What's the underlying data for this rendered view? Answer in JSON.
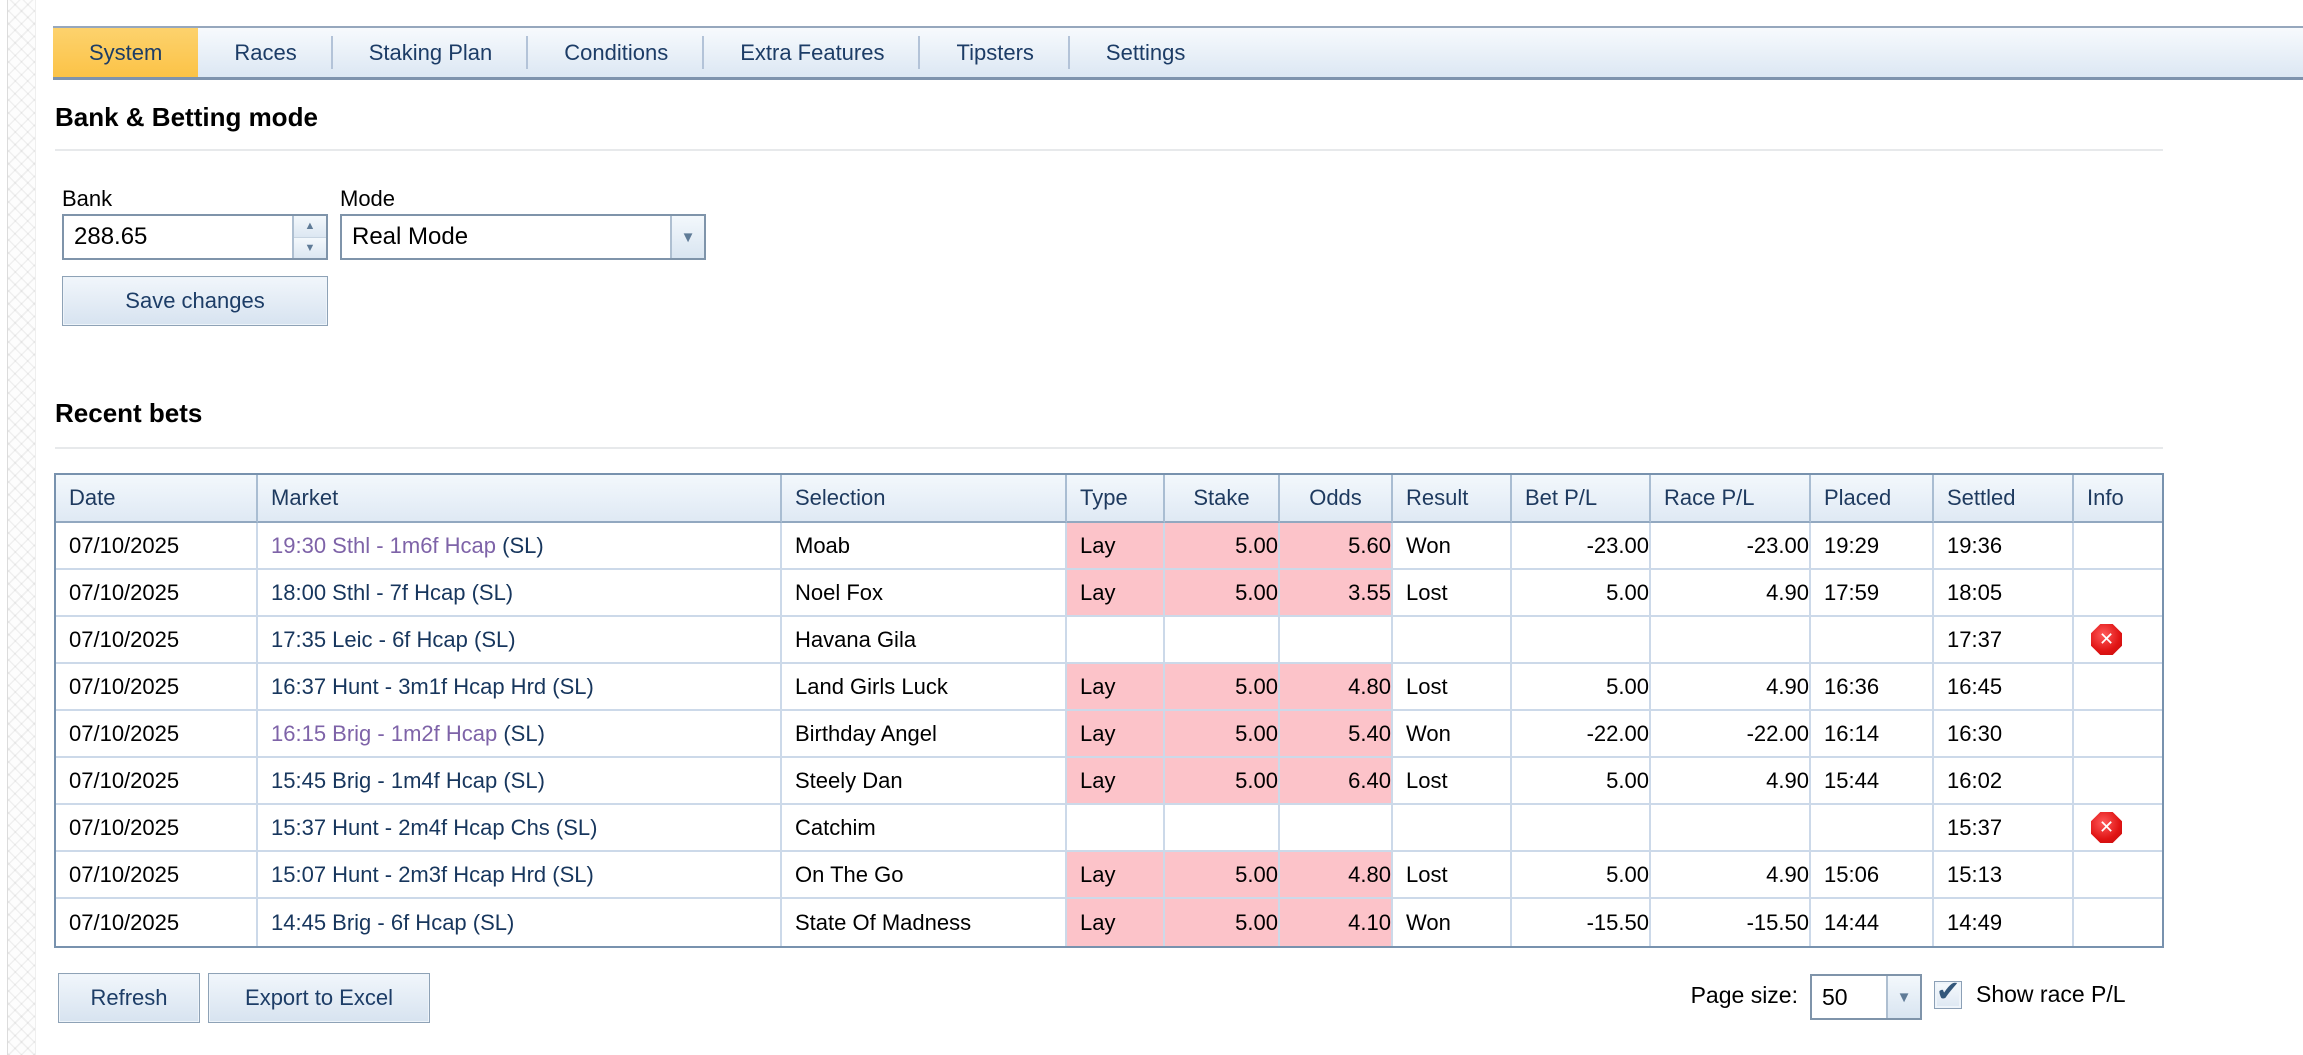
{
  "tabs": {
    "items": [
      {
        "label": "System",
        "active": true
      },
      {
        "label": "Races",
        "active": false
      },
      {
        "label": "Staking Plan",
        "active": false
      },
      {
        "label": "Conditions",
        "active": false
      },
      {
        "label": "Extra Features",
        "active": false
      },
      {
        "label": "Tipsters",
        "active": false
      },
      {
        "label": "Settings",
        "active": false
      }
    ]
  },
  "bank_section": {
    "title": "Bank & Betting mode",
    "bank_label": "Bank",
    "bank_value": "288.65",
    "mode_label": "Mode",
    "mode_value": "Real Mode",
    "save_label": "Save changes"
  },
  "recent_section": {
    "title": "Recent bets",
    "columns": [
      "Date",
      "Market",
      "Selection",
      "Type",
      "Stake",
      "Odds",
      "Result",
      "Bet P/L",
      "Race P/L",
      "Placed",
      "Settled",
      "Info"
    ],
    "rows": [
      {
        "date": "07/10/2025",
        "market": {
          "link": "19:30 Sthl - 1m6f Hcap",
          "suffix": "(SL)",
          "visited": true
        },
        "selection": "Moab",
        "type": "Lay",
        "stake": "5.00",
        "odds": "5.60",
        "result": "Won",
        "bet_pl": "-23.00",
        "race_pl": "-23.00",
        "placed": "19:29",
        "settled": "19:36",
        "error": false
      },
      {
        "date": "07/10/2025",
        "market": {
          "link": "18:00 Sthl - 7f Hcap",
          "suffix": "(SL)",
          "visited": false
        },
        "selection": "Noel Fox",
        "type": "Lay",
        "stake": "5.00",
        "odds": "3.55",
        "result": "Lost",
        "bet_pl": "5.00",
        "race_pl": "4.90",
        "placed": "17:59",
        "settled": "18:05",
        "error": false
      },
      {
        "date": "07/10/2025",
        "market": {
          "link": "17:35 Leic - 6f Hcap",
          "suffix": "(SL)",
          "visited": false
        },
        "selection": "Havana Gila",
        "type": "",
        "stake": "",
        "odds": "",
        "result": "",
        "bet_pl": "",
        "race_pl": "",
        "placed": "",
        "settled": "17:37",
        "error": true
      },
      {
        "date": "07/10/2025",
        "market": {
          "link": "16:37 Hunt - 3m1f Hcap Hrd",
          "suffix": "(SL)",
          "visited": false
        },
        "selection": "Land Girls Luck",
        "type": "Lay",
        "stake": "5.00",
        "odds": "4.80",
        "result": "Lost",
        "bet_pl": "5.00",
        "race_pl": "4.90",
        "placed": "16:36",
        "settled": "16:45",
        "error": false
      },
      {
        "date": "07/10/2025",
        "market": {
          "link": "16:15 Brig - 1m2f Hcap",
          "suffix": "(SL)",
          "visited": true
        },
        "selection": "Birthday Angel",
        "type": "Lay",
        "stake": "5.00",
        "odds": "5.40",
        "result": "Won",
        "bet_pl": "-22.00",
        "race_pl": "-22.00",
        "placed": "16:14",
        "settled": "16:30",
        "error": false
      },
      {
        "date": "07/10/2025",
        "market": {
          "link": "15:45 Brig - 1m4f Hcap",
          "suffix": "(SL)",
          "visited": false
        },
        "selection": "Steely Dan",
        "type": "Lay",
        "stake": "5.00",
        "odds": "6.40",
        "result": "Lost",
        "bet_pl": "5.00",
        "race_pl": "4.90",
        "placed": "15:44",
        "settled": "16:02",
        "error": false
      },
      {
        "date": "07/10/2025",
        "market": {
          "link": "15:37 Hunt - 2m4f Hcap Chs",
          "suffix": "(SL)",
          "visited": false
        },
        "selection": "Catchim",
        "type": "",
        "stake": "",
        "odds": "",
        "result": "",
        "bet_pl": "",
        "race_pl": "",
        "placed": "",
        "settled": "15:37",
        "error": true
      },
      {
        "date": "07/10/2025",
        "market": {
          "link": "15:07 Hunt - 2m3f Hcap Hrd",
          "suffix": "(SL)",
          "visited": false
        },
        "selection": "On The Go",
        "type": "Lay",
        "stake": "5.00",
        "odds": "4.80",
        "result": "Lost",
        "bet_pl": "5.00",
        "race_pl": "4.90",
        "placed": "15:06",
        "settled": "15:13",
        "error": false
      },
      {
        "date": "07/10/2025",
        "market": {
          "link": "14:45 Brig - 6f Hcap",
          "suffix": "(SL)",
          "visited": false
        },
        "selection": "State Of Madness",
        "type": "Lay",
        "stake": "5.00",
        "odds": "4.10",
        "result": "Won",
        "bet_pl": "-15.50",
        "race_pl": "-15.50",
        "placed": "14:44",
        "settled": "14:49",
        "error": false
      }
    ]
  },
  "footer": {
    "refresh_label": "Refresh",
    "export_label": "Export to Excel",
    "page_size_label": "Page size:",
    "page_size_value": "50",
    "show_race_pl_label": "Show race P/L",
    "show_race_pl_checked": true
  },
  "icons": {
    "spinner_up": "▲",
    "spinner_down": "▼",
    "dropdown_arrow": "▼",
    "checkbox_check": "✔",
    "error_x": "✕"
  },
  "colors": {
    "active_tab": "#fbc84e",
    "lay_pink": "#fcc3c9",
    "negative": "#fe0000",
    "positive": "#008000",
    "link": "#17365d",
    "link_visited": "#7e63a8",
    "strip_border": "#7e93ad"
  }
}
